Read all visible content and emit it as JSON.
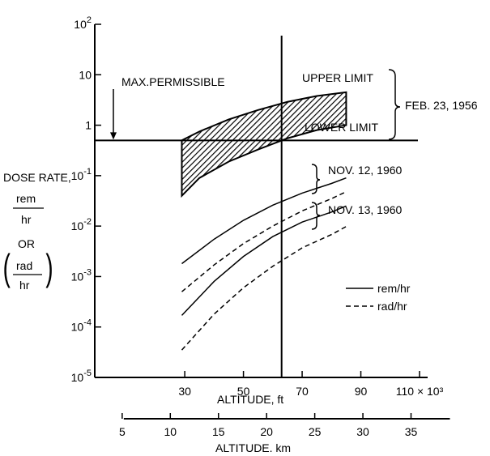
{
  "chart_data": {
    "type": "line",
    "title": "",
    "yscale": "log",
    "ylim": [
      1e-05,
      100
    ],
    "xlim": [
      25,
      110
    ],
    "y_ticks": [
      {
        "value": 100,
        "base": "10",
        "exp": "2"
      },
      {
        "value": 10,
        "base": "10",
        "exp": ""
      },
      {
        "value": 1,
        "base": "1",
        "exp": ""
      },
      {
        "value": 0.1,
        "base": "10",
        "exp": "-1"
      },
      {
        "value": 0.01,
        "base": "10",
        "exp": "-2"
      },
      {
        "value": 0.001,
        "base": "10",
        "exp": "-3"
      },
      {
        "value": 0.0001,
        "base": "10",
        "exp": "-4"
      },
      {
        "value": 1e-05,
        "base": "10",
        "exp": "-5"
      }
    ],
    "x_ticks_ft": [
      {
        "value": 30,
        "label": "30"
      },
      {
        "value": 50,
        "label": "50"
      },
      {
        "value": 70,
        "label": "70"
      },
      {
        "value": 90,
        "label": "90"
      },
      {
        "value": 110,
        "label": "110 × 10³"
      }
    ],
    "x_ticks_km": [
      {
        "value": 5,
        "label": "5"
      },
      {
        "value": 10,
        "label": "10"
      },
      {
        "value": 15,
        "label": "15"
      },
      {
        "value": 20,
        "label": "20"
      },
      {
        "value": 25,
        "label": "25"
      },
      {
        "value": 30,
        "label": "30"
      },
      {
        "value": 35,
        "label": "35"
      }
    ],
    "xlabel_ft": "ALTITUDE, ft",
    "xlabel_km": "ALTITUDE. km",
    "ylabel": {
      "line1": "DOSE RATE,",
      "rem": "rem",
      "hr1": "hr",
      "or": "OR",
      "rad": "rad",
      "hr2": "hr"
    },
    "reference_lines": {
      "max_permissible_value": 0.5,
      "max_permissible_label": "MAX.PERMISSIBLE",
      "vertical_altitude_ft": 63
    },
    "band": {
      "label": "FEB. 23, 1956",
      "upper_label": "UPPER LIMIT",
      "lower_label": "LOWER LIMIT",
      "upper": {
        "x": [
          29,
          35,
          45,
          55,
          65,
          75,
          85
        ],
        "y": [
          0.5,
          0.75,
          1.3,
          2.0,
          2.9,
          3.8,
          4.5
        ]
      },
      "lower": {
        "x": [
          29,
          35,
          45,
          55,
          65,
          75,
          85
        ],
        "y": [
          0.04,
          0.09,
          0.19,
          0.33,
          0.55,
          0.8,
          1.0
        ]
      }
    },
    "series": [
      {
        "group": "NOV. 12, 1960",
        "unit": "rem/hr",
        "dash": false,
        "x": [
          29,
          40,
          50,
          60,
          70,
          80,
          85
        ],
        "y": [
          0.0018,
          0.0055,
          0.013,
          0.026,
          0.045,
          0.07,
          0.09
        ]
      },
      {
        "group": "NOV. 12, 1960",
        "unit": "rad/hr",
        "dash": true,
        "x": [
          29,
          40,
          50,
          60,
          70,
          80,
          85
        ],
        "y": [
          0.0005,
          0.0017,
          0.0045,
          0.01,
          0.02,
          0.035,
          0.048
        ]
      },
      {
        "group": "NOV. 13, 1960",
        "unit": "rem/hr",
        "dash": false,
        "x": [
          29,
          40,
          50,
          60,
          70,
          80,
          85
        ],
        "y": [
          0.00017,
          0.0008,
          0.0025,
          0.0062,
          0.012,
          0.019,
          0.025
        ]
      },
      {
        "group": "NOV. 13, 1960",
        "unit": "rad/hr",
        "dash": true,
        "x": [
          29,
          40,
          50,
          60,
          70,
          80,
          85
        ],
        "y": [
          3.5e-05,
          0.00018,
          0.0006,
          0.0016,
          0.0037,
          0.0068,
          0.0098
        ]
      }
    ],
    "group_labels": [
      "NOV. 12, 1960",
      "NOV. 13, 1960"
    ],
    "legend": [
      {
        "label": "rem/hr",
        "dash": false
      },
      {
        "label": "rad/hr",
        "dash": true
      }
    ],
    "legend_position": "right",
    "grid": false
  }
}
